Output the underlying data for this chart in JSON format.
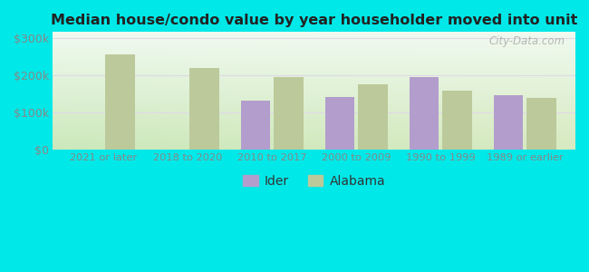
{
  "title": "Median house/condo value by year householder moved into unit",
  "categories": [
    "2021 or later",
    "2018 to 2020",
    "2010 to 2017",
    "2000 to 2009",
    "1990 to 1999",
    "1989 or earlier"
  ],
  "ider_values": [
    null,
    null,
    130000,
    140000,
    195000,
    145000
  ],
  "alabama_values": [
    255000,
    218000,
    195000,
    175000,
    158000,
    138000
  ],
  "ider_color": "#b39dcc",
  "alabama_color": "#bcc99a",
  "background_outer": "#00e8e8",
  "background_inner_top_left": "#e8f5e8",
  "background_inner_top_right": "#f5fdf5",
  "background_inner_bottom": "#c8e0b8",
  "ylabel_ticks": [
    "$0",
    "$100k",
    "$200k",
    "$300k"
  ],
  "ytick_values": [
    0,
    100000,
    200000,
    300000
  ],
  "ylim": [
    0,
    315000
  ],
  "bar_width": 0.35,
  "watermark": "City-Data.com",
  "legend_labels": [
    "Ider",
    "Alabama"
  ],
  "grid_color": "#ddeecc",
  "tick_color": "#888888",
  "title_color": "#222222"
}
